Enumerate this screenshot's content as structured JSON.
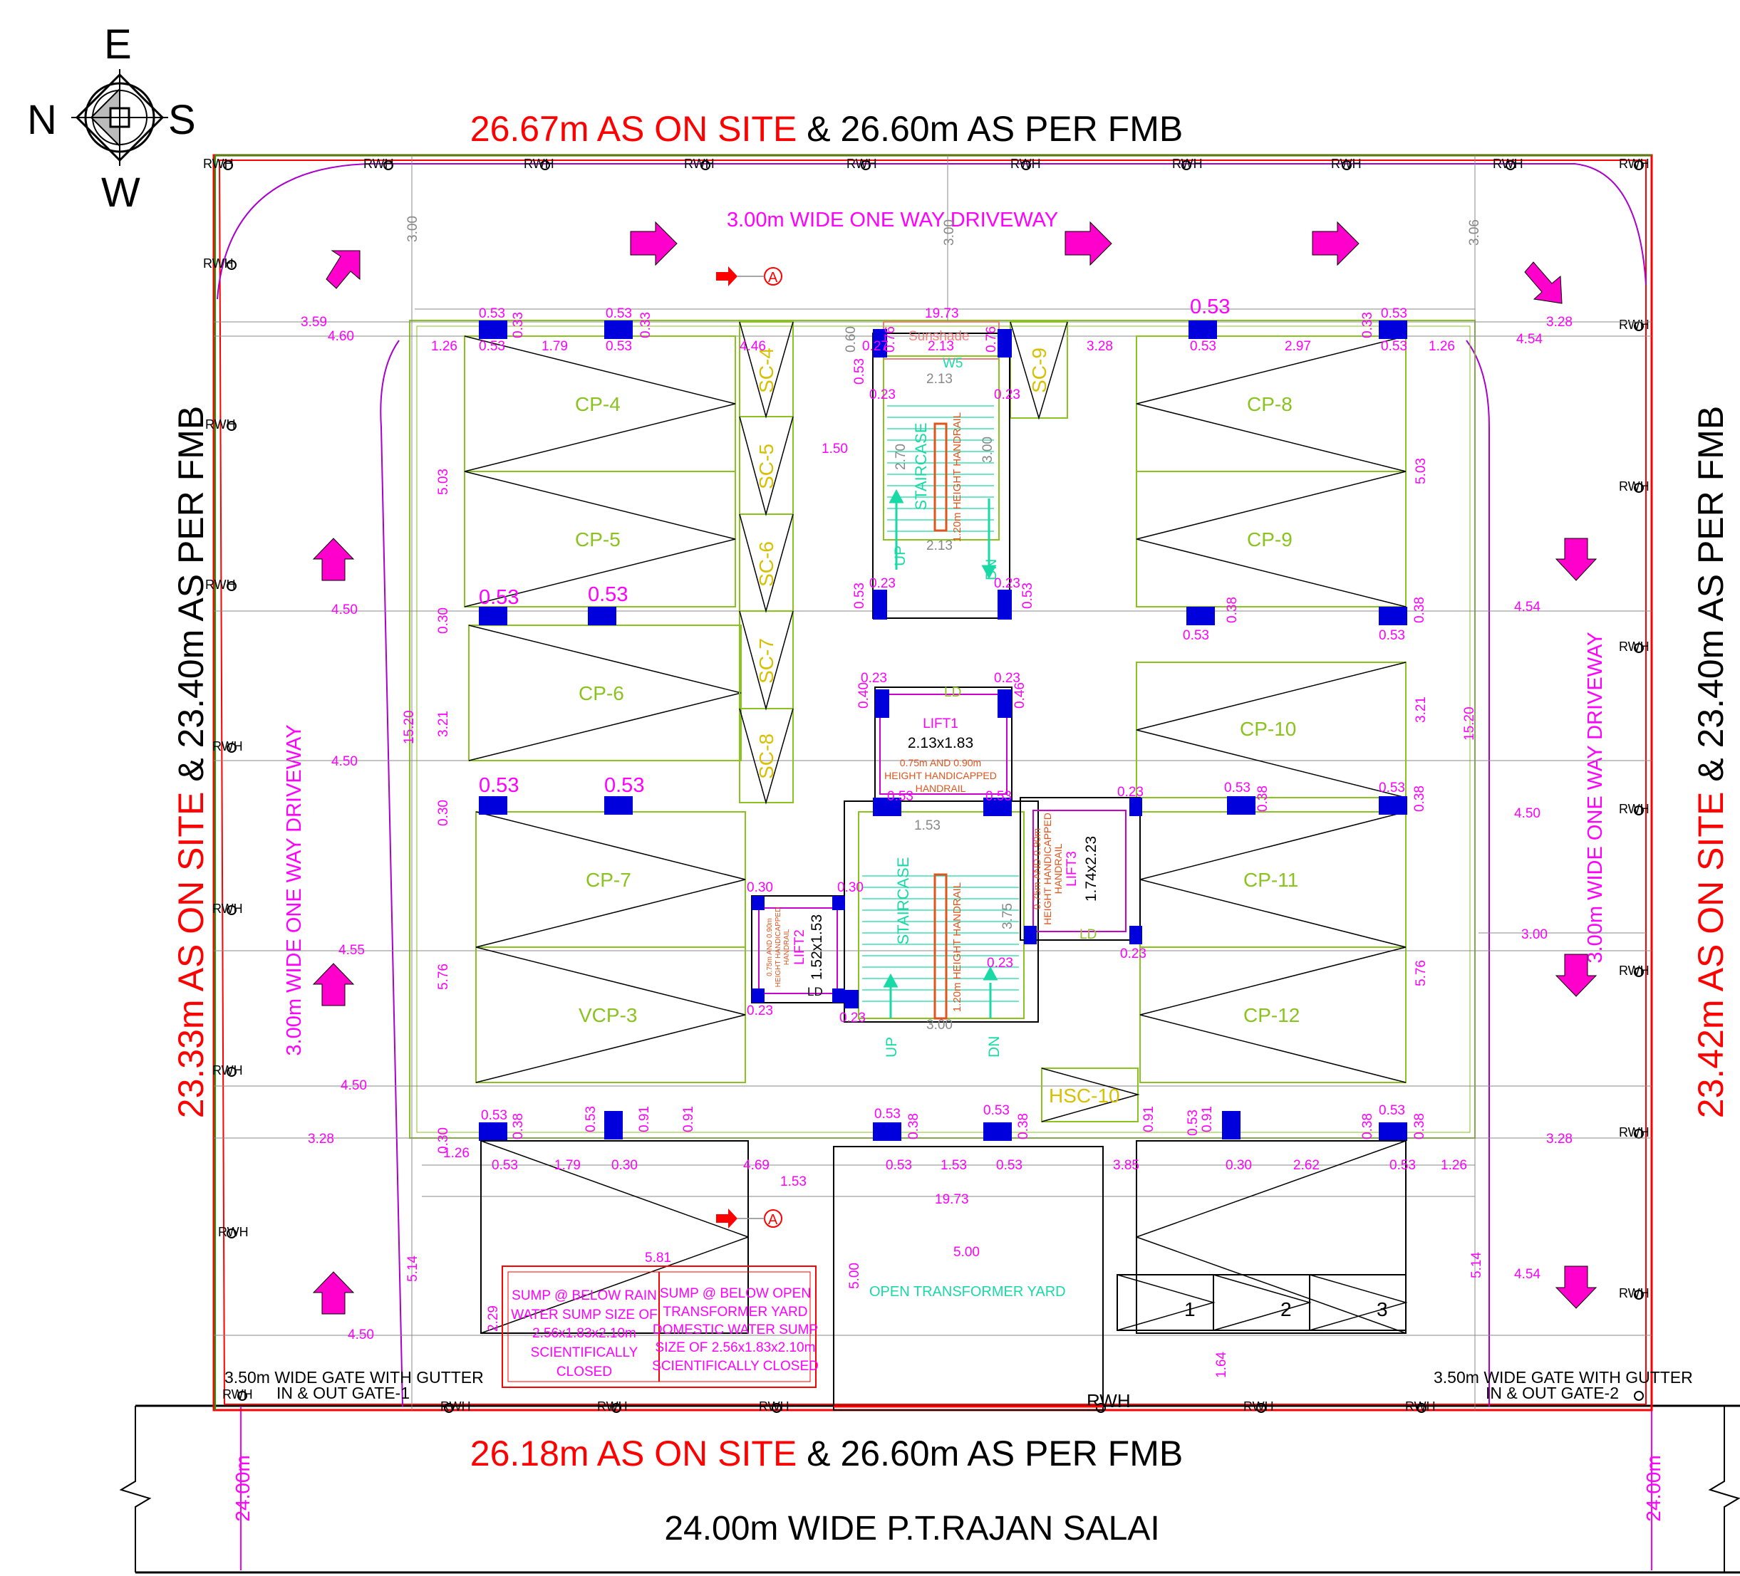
{
  "compass": {
    "north": "N",
    "south": "S",
    "east": "E",
    "west": "W"
  },
  "titles": {
    "top_red": "26.67m AS ON SITE",
    "top_black": " & 26.60m AS PER FMB",
    "bottom_red": "26.18m AS ON SITE",
    "bottom_black": " & 26.60m AS PER FMB",
    "left_red": "23.33m AS ON SITE",
    "left_black": " & 23.40m AS PER FMB",
    "right_red": "23.42m AS ON SITE",
    "right_black": " & 23.40m AS PER FMB",
    "road": "24.00m WIDE P.T.RAJAN SALAI",
    "road_width_left": "24.00m",
    "road_width_right": "24.00m"
  },
  "driveways": {
    "top": "3.00m WIDE ONE WAY DRIVEWAY",
    "left": "3.00m WIDE ONE WAY DRIVEWAY",
    "right": "3.00m WIDE ONE WAY DRIVEWAY"
  },
  "gates": {
    "gate1_line1": "3.50m WIDE GATE WITH GUTTER",
    "gate1_line2": "IN & OUT GATE-1",
    "gate2_line1": "3.50m WIDE GATE WITH GUTTER",
    "gate2_line2": "IN & OUT GATE-2"
  },
  "parking": {
    "cp4": "CP-4",
    "cp5": "CP-5",
    "cp6": "CP-6",
    "cp7": "CP-7",
    "vcp3": "VCP-3",
    "cp8": "CP-8",
    "cp9": "CP-9",
    "cp10": "CP-10",
    "cp11": "CP-11",
    "cp12": "CP-12"
  },
  "scooters": {
    "sc4": "SC-4",
    "sc5": "SC-5",
    "sc6": "SC-6",
    "sc7": "SC-7",
    "sc8": "SC-8",
    "sc9": "SC-9",
    "hsc10": "HSC-10"
  },
  "core": {
    "sunshade": "Sunshade",
    "w5": "W5",
    "staircase_top": "STAIRCASE",
    "staircase_bottom": "STAIRCASE",
    "handrail_top": "1.20m HEIGHT HANDRAIL",
    "handrail_bottom": "1.20m HEIGHT HANDRAIL",
    "up_top": "UP",
    "dn_top": "DN",
    "up_bottom": "UP",
    "dn_bottom": "DN",
    "lift1": "LIFT1",
    "lift1_size": "2.13x1.83",
    "lift1_note1": "0.75m AND 0.90m",
    "lift1_note2": "HEIGHT HANDICAPPED",
    "lift1_note3": "HANDRAIL",
    "lift2": "LIFT2",
    "lift2_size": "1.52x1.53",
    "lift2_note1": "0.75m AND 0.90m",
    "lift2_note2": "HEIGHT HANDICAPPED",
    "lift2_note3": "HANDRAIL",
    "lift3": "LIFT3",
    "lift3_size": "1.74x2.23",
    "lift3_note1": "0.75m AND 0.90m",
    "lift3_note2": "HEIGHT HANDICAPPED",
    "lift3_note3": "HANDRAIL",
    "ld": "LD"
  },
  "utilities": {
    "transformer": "OPEN TRANSFORMER YARD",
    "sump1_l1": "SUMP @ BELOW RAIN",
    "sump1_l2": "WATER SUMP SIZE OF",
    "sump1_l3": "2.56x1.83x2.10m",
    "sump1_l4": "SCIENTIFICALLY",
    "sump1_l5": "CLOSED",
    "sump2_l1": "SUMP @ BELOW OPEN",
    "sump2_l2": "TRANSFORMER YARD",
    "sump2_l3": "DOMESTIC WATER SUMP",
    "sump2_l4": "SIZE OF 2.56x1.83x2.10m",
    "sump2_l5": "SCIENTIFICALLY CLOSED",
    "meter1": "1",
    "meter2": "2",
    "meter3": "3",
    "rwh": "RWH",
    "section_a": "A"
  },
  "dims": {
    "d1973": "19.73",
    "d359": "3.59",
    "d460": "4.60",
    "d126": "1.26",
    "d179": "1.79",
    "d053": "0.53",
    "d033": "0.33",
    "d446": "4.46",
    "d027": "0.27",
    "d076": "0.76",
    "d213": "2.13",
    "d328": "3.28",
    "d297": "2.97",
    "d454": "4.54",
    "d300": "3.00",
    "d306": "3.06",
    "d060": "0.60",
    "d150": "1.50",
    "d270": "2.70",
    "d503": "5.03",
    "d321": "3.21",
    "d576": "5.76",
    "d1520": "15.20",
    "d450": "4.50",
    "d455": "4.55",
    "d153": "1.53",
    "d375": "3.75",
    "d469": "4.69",
    "d385": "3.85",
    "d262": "2.62",
    "d581": "5.81",
    "d500": "5.00",
    "d229": "2.29",
    "d514": "5.14",
    "d164": "1.64",
    "d030": "0.30",
    "d091": "0.91",
    "d023": "0.23",
    "d046": "0.46",
    "d040": "0.40",
    "d038": "0.38",
    "d058": "0.53"
  }
}
